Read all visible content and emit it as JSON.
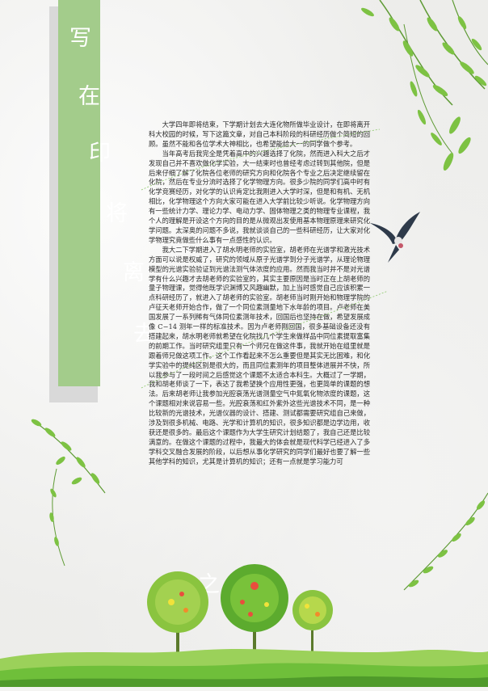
{
  "vertical_title": [
    "写",
    "在",
    "印",
    "将",
    "离",
    "去",
    "之",
    "际"
  ],
  "paragraphs": [
    "大学四年即将结束，下学期计划去大连化物所做毕业设计，在即将离开科大校园的时候，写下这篇文章，对自己本科阶段的科研经历做个简短的回顾。虽然不能和各位学术大神相比，也希望能给大一的同学做个参考。",
    "当年高考后我完全是凭着高中的兴趣选择了化院，然而进入科大之后才发现自己并不喜欢做化学实验，大一结束时也曾经考虑过转到其他院，但是后来仔细了解了化院各位老师的研究方向和化院各个专业之后决定继续留在化院，然后在专业分流时选择了化学物理方向。很多少院的同学们高中时有化学竞赛经历，对化学的认识肯定比我刚进入大学时深，但是和有机、无机相比，化学物理这个方向大家可能在进入大学前比较少听说。化学物理方向有一些统计力学、理论力学、电动力学、固体物理之类的物理专业课程，我个人的理解是开设这个方向的目的是从微观出发使用基本物理原理来研究化学问题。太深奥的问题不多说，我就谈谈自己的一些科研经历，让大家对化学物理究竟做些什么事有一点感性的认识。",
    "我大二下学期进入了胡水明老师的实验室，胡老师在光谱学和激光技术方面可以说是权威了，研究的领域从原子光谱学到分子光谱学，从理论物理模型的光谱实验验证到光谱法测气体浓度的应用。然而我当时并不是对光谱学有什么兴趣才去胡老师的实验室的，其实主要原因是当时正在上胡老师的量子物理课，觉得他既学识渊博又风趣幽默，加上当时感觉自己应该积累一点科研经历了，就进入了胡老师的实验室。胡老师当时刚开始和物理学院的卢征天老师开始合作，做了一个同位素测量地下水年龄的项目。卢老师在美国发展了一系列稀有气体同位素测年技术，回国后也坚持在做，希望发展成像 C−14 测年一样的标准技术。因为卢老师刚回国，很多基础设备还没有搭建起来，胡水明老师就希望在化院找几个学生来做样品中同位素提取富集的前期工作。当时研究组里只有一个师兄在做这件事，我就开始在组里就是跟着师兄做这项工作。这个工作看起来不怎么重要但是其实无比困难，和化学实验中的提纯区别是很大的，而且同位素测年的项目整体进展并不快，所以我参与了一段时间之后感觉这个课题不太适合本科生。大概过了一学期，我和胡老师谈了一下，表达了我希望换个应用性更强，也更简单的课题的想法。后来胡老师让我参加光腔衰荡光谱测量空气中氮氧化物浓度的课题，这个课题相对来说容易一些。光腔衰荡和红外紫外这些光谱技术不同，是一种比较新的光谱技术，光谱仪器的设计、搭建、测试都需要研究组自己来做，涉及到很多机械、电路、光学和计算机的知识，很多知识都是边学边用，收获还是很多的。最后这个课题作为大学生研究计划结题了，我自己还是比较满意的。在做这个课题的过程中，我最大的体会就是现代科学已经进入了多学科交叉融合发展的阶段，以后想从事化学研究的同学们最好也要了解一些其他学科的知识，尤其是计算机的知识；还有一点就是学习能力可"
  ],
  "colors": {
    "banner": "#a3cc8b",
    "leaf": "#7dc243",
    "leaf_dark": "#4f9a2a",
    "grass": "#6fbf3a",
    "text": "#2a2a2a"
  }
}
